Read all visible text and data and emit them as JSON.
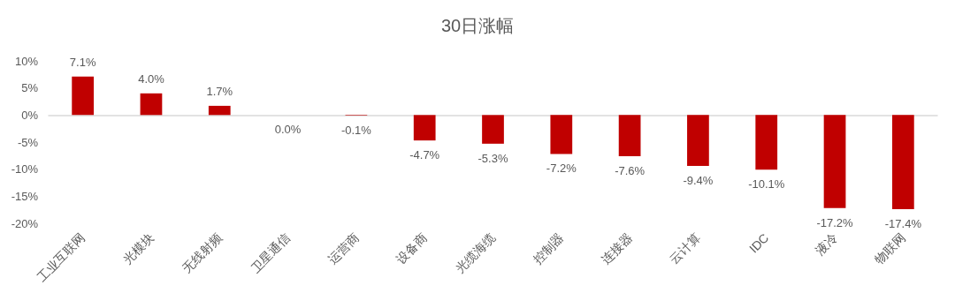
{
  "chart_data": {
    "type": "bar",
    "title": "30日涨幅",
    "categories": [
      "工业互联网",
      "光模块",
      "无线射频",
      "卫星通信",
      "运营商",
      "设备商",
      "光缆海缆",
      "控制器",
      "连接器",
      "云计算",
      "IDC",
      "液冷",
      "物联网"
    ],
    "values": [
      7.1,
      4.0,
      1.7,
      0.0,
      -0.1,
      -4.7,
      -5.3,
      -7.2,
      -7.6,
      -9.4,
      -10.1,
      -17.2,
      -17.4
    ],
    "value_labels": [
      "7.1%",
      "4.0%",
      "1.7%",
      "0.0%",
      "-0.1%",
      "-4.7%",
      "-5.3%",
      "-7.2%",
      "-7.6%",
      "-9.4%",
      "-10.1%",
      "-17.2%",
      "-17.4%"
    ],
    "color": "#c00000",
    "ylim": [
      -20,
      10
    ],
    "yticks": [
      {
        "value": 10,
        "label": "10%"
      },
      {
        "value": 5,
        "label": "5%"
      },
      {
        "value": 0,
        "label": "0%"
      },
      {
        "value": -5,
        "label": "-5%"
      },
      {
        "value": -10,
        "label": "-10%"
      },
      {
        "value": -15,
        "label": "-15%"
      },
      {
        "value": -20,
        "label": "-20%"
      }
    ]
  }
}
